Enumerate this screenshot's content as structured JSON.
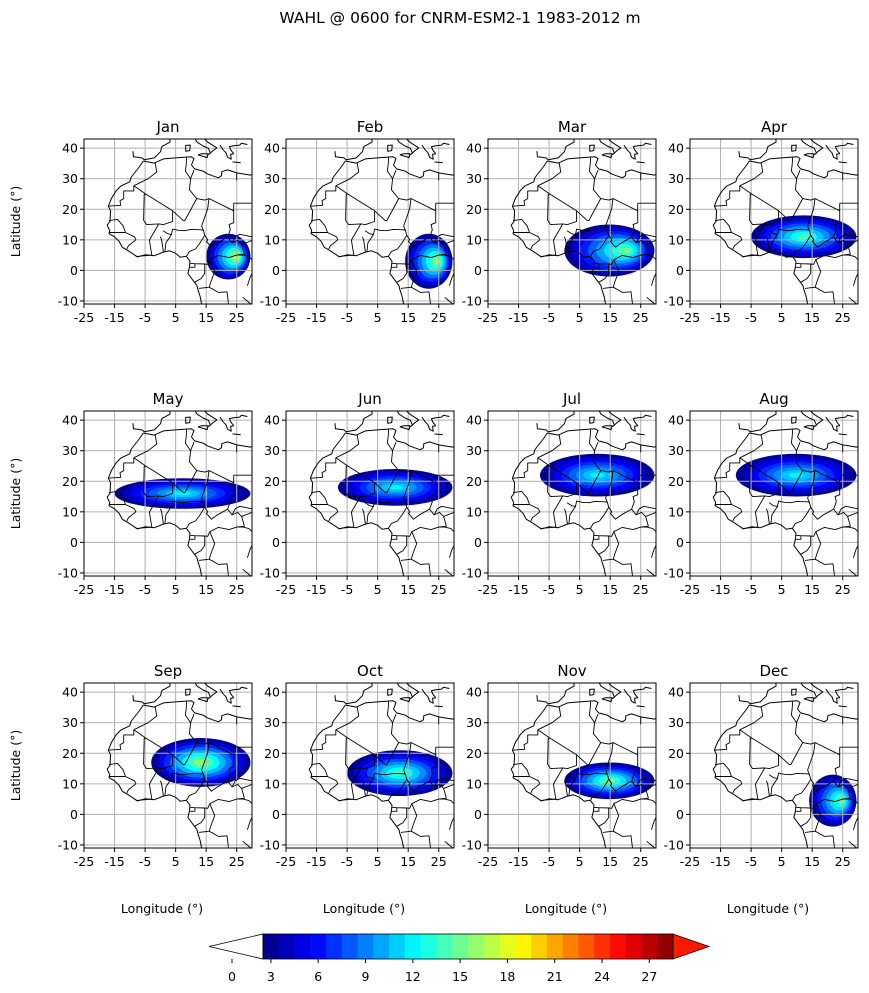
{
  "title": "WAHL @ 0600 for CNRM-ESM2-1 1983-2012 m",
  "ylabel": "Latitude (°)",
  "xlabel": "Longitude (°)",
  "colors": {
    "background": "#ffffff",
    "grid": "#b0b0b0",
    "coast": "#000000",
    "colormap": "jet",
    "under": "#ffffff",
    "over": "#ff1a00"
  },
  "chart_data": {
    "type": "heatmap",
    "projection": "plate carree",
    "xlim": [
      -25,
      30
    ],
    "ylim": [
      -11,
      43
    ],
    "xticks": [
      "-25",
      "-15",
      "-5",
      "5",
      "15",
      "25"
    ],
    "xtick_values": [
      -25,
      -15,
      -5,
      5,
      15,
      25
    ],
    "yticks": [
      "-10",
      "0",
      "10",
      "20",
      "30",
      "40"
    ],
    "ytick_values": [
      -10,
      0,
      10,
      20,
      30,
      40
    ],
    "grid": true,
    "colorbar": {
      "orientation": "horizontal",
      "levels": [
        2.5,
        28.5
      ],
      "ticks": [
        0,
        3,
        6,
        9,
        12,
        15,
        18,
        21,
        24,
        27
      ],
      "extend": "both"
    },
    "panels": [
      {
        "title": "Jan",
        "blobs": [
          {
            "lon": [
              15,
              29.5
            ],
            "lat": [
              -3,
              12
            ],
            "peak": 17,
            "shape": "east"
          }
        ]
      },
      {
        "title": "Feb",
        "blobs": [
          {
            "lon": [
              14,
              29.5
            ],
            "lat": [
              -6,
              12
            ],
            "peak": 16,
            "shape": "east"
          }
        ]
      },
      {
        "title": "Mar",
        "blobs": [
          {
            "lon": [
              0,
              29.5
            ],
            "lat": [
              -2,
              15
            ],
            "peak": 15,
            "shape": "east"
          }
        ]
      },
      {
        "title": "Apr",
        "blobs": [
          {
            "lon": [
              -5,
              29.5
            ],
            "lat": [
              4,
              18
            ],
            "peak": 14,
            "shape": "band"
          }
        ]
      },
      {
        "title": "May",
        "blobs": [
          {
            "lon": [
              -15,
              29.5
            ],
            "lat": [
              11,
              21
            ],
            "peak": 12,
            "shape": "band"
          }
        ]
      },
      {
        "title": "Jun",
        "blobs": [
          {
            "lon": [
              -8,
              29.5
            ],
            "lat": [
              12,
              24
            ],
            "peak": 12,
            "shape": "band"
          }
        ]
      },
      {
        "title": "Jul",
        "blobs": [
          {
            "lon": [
              -8,
              29.5
            ],
            "lat": [
              15,
              29
            ],
            "peak": 12,
            "shape": "band"
          }
        ]
      },
      {
        "title": "Aug",
        "blobs": [
          {
            "lon": [
              -10,
              29.5
            ],
            "lat": [
              15,
              29
            ],
            "peak": 12,
            "shape": "band"
          }
        ]
      },
      {
        "title": "Sep",
        "blobs": [
          {
            "lon": [
              -3,
              29.5
            ],
            "lat": [
              9,
              25
            ],
            "peak": 16,
            "shape": "band"
          }
        ]
      },
      {
        "title": "Oct",
        "blobs": [
          {
            "lon": [
              -5,
              29.5
            ],
            "lat": [
              6,
              21
            ],
            "peak": 14,
            "shape": "band"
          }
        ]
      },
      {
        "title": "Nov",
        "blobs": [
          {
            "lon": [
              0,
              29.5
            ],
            "lat": [
              5,
              17
            ],
            "peak": 15,
            "shape": "band"
          }
        ]
      },
      {
        "title": "Dec",
        "blobs": [
          {
            "lon": [
              14,
              29.5
            ],
            "lat": [
              -4,
              13
            ],
            "peak": 15,
            "shape": "east"
          }
        ]
      }
    ]
  }
}
